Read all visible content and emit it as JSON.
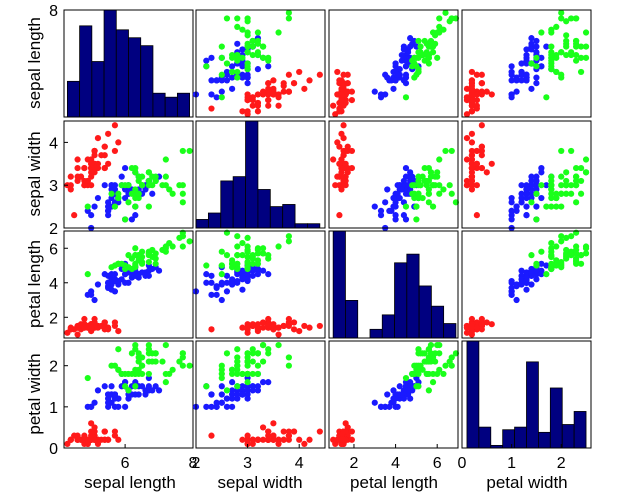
{
  "chart_data": {
    "type": "scatter_matrix",
    "title": "",
    "variables": [
      "sepal length",
      "sepal width",
      "petal length",
      "petal width"
    ],
    "ranges": [
      [
        4.2,
        8.0
      ],
      [
        2.0,
        4.5
      ],
      [
        0.8,
        7.0
      ],
      [
        0.0,
        2.6
      ]
    ],
    "ticks": [
      [
        6,
        8
      ],
      [
        2,
        3,
        4
      ],
      [
        2,
        4,
        6
      ],
      [
        0,
        1,
        2
      ]
    ],
    "y_ticks": [
      [
        8
      ],
      [
        2,
        3,
        4
      ],
      [
        2,
        4,
        6
      ],
      [
        0,
        1,
        2
      ]
    ],
    "tick_labels": {
      "x": [
        [
          "6",
          "8"
        ],
        [
          "2",
          "3",
          "4"
        ],
        [
          "2",
          "4",
          "6"
        ],
        [
          "0",
          "1",
          "2"
        ]
      ],
      "y": [
        [
          "8"
        ],
        [
          "2",
          "3",
          "4"
        ],
        [
          "2",
          "4",
          "6"
        ],
        [
          "0",
          "1",
          "2"
        ]
      ]
    },
    "species_colors": [
      "#ff1a1a",
      "#1a1aff",
      "#1aff1a"
    ],
    "hist_color": "#000080",
    "histograms": [
      {
        "edges": [
          4.3,
          4.66,
          5.02,
          5.38,
          5.74,
          6.1,
          6.46,
          6.82,
          7.18,
          7.54,
          7.9
        ],
        "counts": [
          9,
          23,
          14,
          27,
          22,
          20,
          18,
          6,
          5,
          6
        ]
      },
      {
        "edges": [
          2.0,
          2.24,
          2.48,
          2.72,
          2.96,
          3.2,
          3.44,
          3.68,
          3.92,
          4.16,
          4.4
        ],
        "counts": [
          4,
          7,
          22,
          24,
          50,
          18,
          10,
          11,
          2,
          2
        ]
      },
      {
        "edges": [
          1.0,
          1.59,
          2.18,
          2.77,
          3.36,
          3.95,
          4.54,
          5.13,
          5.72,
          6.31,
          6.9
        ],
        "counts": [
          37,
          13,
          0,
          3,
          8,
          26,
          29,
          18,
          11,
          5
        ]
      },
      {
        "edges": [
          0.1,
          0.34,
          0.58,
          0.82,
          1.06,
          1.3,
          1.54,
          1.78,
          2.02,
          2.26,
          2.5
        ],
        "counts": [
          41,
          8,
          1,
          7,
          8,
          33,
          6,
          23,
          9,
          14
        ]
      }
    ],
    "species": [
      {
        "points": [
          [
            5.1,
            3.5,
            1.4,
            0.2
          ],
          [
            4.9,
            3.0,
            1.4,
            0.2
          ],
          [
            4.7,
            3.2,
            1.3,
            0.2
          ],
          [
            4.6,
            3.1,
            1.5,
            0.2
          ],
          [
            5.0,
            3.6,
            1.4,
            0.2
          ],
          [
            5.4,
            3.9,
            1.7,
            0.4
          ],
          [
            4.6,
            3.4,
            1.4,
            0.3
          ],
          [
            5.0,
            3.4,
            1.5,
            0.2
          ],
          [
            4.4,
            2.9,
            1.4,
            0.2
          ],
          [
            4.9,
            3.1,
            1.5,
            0.1
          ],
          [
            5.4,
            3.7,
            1.5,
            0.2
          ],
          [
            4.8,
            3.4,
            1.6,
            0.2
          ],
          [
            4.8,
            3.0,
            1.4,
            0.1
          ],
          [
            4.3,
            3.0,
            1.1,
            0.1
          ],
          [
            5.8,
            4.0,
            1.2,
            0.2
          ],
          [
            5.7,
            4.4,
            1.5,
            0.4
          ],
          [
            5.4,
            3.9,
            1.3,
            0.4
          ],
          [
            5.1,
            3.5,
            1.4,
            0.3
          ],
          [
            5.7,
            3.8,
            1.7,
            0.3
          ],
          [
            5.1,
            3.8,
            1.5,
            0.3
          ],
          [
            5.4,
            3.4,
            1.7,
            0.2
          ],
          [
            5.1,
            3.7,
            1.5,
            0.4
          ],
          [
            4.6,
            3.6,
            1.0,
            0.2
          ],
          [
            5.1,
            3.3,
            1.7,
            0.5
          ],
          [
            4.8,
            3.4,
            1.9,
            0.2
          ],
          [
            5.0,
            3.0,
            1.6,
            0.2
          ],
          [
            5.0,
            3.4,
            1.6,
            0.4
          ],
          [
            5.2,
            3.5,
            1.5,
            0.2
          ],
          [
            5.2,
            3.4,
            1.4,
            0.2
          ],
          [
            4.7,
            3.2,
            1.6,
            0.2
          ],
          [
            4.8,
            3.1,
            1.6,
            0.2
          ],
          [
            5.4,
            3.4,
            1.5,
            0.4
          ],
          [
            5.2,
            4.1,
            1.5,
            0.1
          ],
          [
            5.5,
            4.2,
            1.4,
            0.2
          ],
          [
            4.9,
            3.1,
            1.5,
            0.2
          ],
          [
            5.0,
            3.2,
            1.2,
            0.2
          ],
          [
            5.5,
            3.5,
            1.3,
            0.2
          ],
          [
            4.9,
            3.6,
            1.4,
            0.1
          ],
          [
            4.4,
            3.0,
            1.3,
            0.2
          ],
          [
            5.1,
            3.4,
            1.5,
            0.2
          ],
          [
            5.0,
            3.5,
            1.3,
            0.3
          ],
          [
            4.5,
            2.3,
            1.3,
            0.3
          ],
          [
            4.4,
            3.2,
            1.3,
            0.2
          ],
          [
            5.0,
            3.5,
            1.6,
            0.6
          ],
          [
            5.1,
            3.8,
            1.9,
            0.4
          ],
          [
            4.8,
            3.0,
            1.4,
            0.3
          ],
          [
            5.1,
            3.8,
            1.6,
            0.2
          ],
          [
            4.6,
            3.2,
            1.4,
            0.2
          ],
          [
            5.3,
            3.7,
            1.5,
            0.2
          ],
          [
            5.0,
            3.3,
            1.4,
            0.2
          ]
        ]
      },
      {
        "points": [
          [
            7.0,
            3.2,
            4.7,
            1.4
          ],
          [
            6.4,
            3.2,
            4.5,
            1.5
          ],
          [
            6.9,
            3.1,
            4.9,
            1.5
          ],
          [
            5.5,
            2.3,
            4.0,
            1.3
          ],
          [
            6.5,
            2.8,
            4.6,
            1.5
          ],
          [
            5.7,
            2.8,
            4.5,
            1.3
          ],
          [
            6.3,
            3.3,
            4.7,
            1.6
          ],
          [
            4.9,
            2.4,
            3.3,
            1.0
          ],
          [
            6.6,
            2.9,
            4.6,
            1.3
          ],
          [
            5.2,
            2.7,
            3.9,
            1.4
          ],
          [
            5.0,
            2.0,
            3.5,
            1.0
          ],
          [
            5.9,
            3.0,
            4.2,
            1.5
          ],
          [
            6.0,
            2.2,
            4.0,
            1.0
          ],
          [
            6.1,
            2.9,
            4.7,
            1.4
          ],
          [
            5.6,
            2.9,
            3.6,
            1.3
          ],
          [
            6.7,
            3.1,
            4.4,
            1.4
          ],
          [
            5.6,
            3.0,
            4.5,
            1.5
          ],
          [
            5.8,
            2.7,
            4.1,
            1.0
          ],
          [
            6.2,
            2.2,
            4.5,
            1.5
          ],
          [
            5.6,
            2.5,
            3.9,
            1.1
          ],
          [
            5.9,
            3.2,
            4.8,
            1.8
          ],
          [
            6.1,
            2.8,
            4.0,
            1.3
          ],
          [
            6.3,
            2.5,
            4.9,
            1.5
          ],
          [
            6.1,
            2.8,
            4.7,
            1.2
          ],
          [
            6.4,
            2.9,
            4.3,
            1.3
          ],
          [
            6.6,
            3.0,
            4.4,
            1.4
          ],
          [
            6.8,
            2.8,
            4.8,
            1.4
          ],
          [
            6.7,
            3.0,
            5.0,
            1.7
          ],
          [
            6.0,
            2.9,
            4.5,
            1.5
          ],
          [
            5.7,
            2.6,
            3.5,
            1.0
          ],
          [
            5.5,
            2.4,
            3.8,
            1.1
          ],
          [
            5.5,
            2.4,
            3.7,
            1.0
          ],
          [
            5.8,
            2.7,
            3.9,
            1.2
          ],
          [
            6.0,
            2.7,
            5.1,
            1.6
          ],
          [
            5.4,
            3.0,
            4.5,
            1.5
          ],
          [
            6.0,
            3.4,
            4.5,
            1.6
          ],
          [
            6.7,
            3.1,
            4.7,
            1.5
          ],
          [
            6.3,
            2.3,
            4.4,
            1.3
          ],
          [
            5.6,
            3.0,
            4.1,
            1.3
          ],
          [
            5.5,
            2.5,
            4.0,
            1.3
          ],
          [
            5.5,
            2.6,
            4.4,
            1.2
          ],
          [
            6.1,
            3.0,
            4.6,
            1.4
          ],
          [
            5.8,
            2.6,
            4.0,
            1.2
          ],
          [
            5.0,
            2.3,
            3.3,
            1.0
          ],
          [
            5.6,
            2.7,
            4.2,
            1.3
          ],
          [
            5.7,
            3.0,
            4.2,
            1.2
          ],
          [
            5.7,
            2.9,
            4.2,
            1.3
          ],
          [
            6.2,
            2.9,
            4.3,
            1.3
          ],
          [
            5.1,
            2.5,
            3.0,
            1.1
          ],
          [
            5.7,
            2.8,
            4.1,
            1.3
          ]
        ]
      },
      {
        "points": [
          [
            6.3,
            3.3,
            6.0,
            2.5
          ],
          [
            5.8,
            2.7,
            5.1,
            1.9
          ],
          [
            7.1,
            3.0,
            5.9,
            2.1
          ],
          [
            6.3,
            2.9,
            5.6,
            1.8
          ],
          [
            6.5,
            3.0,
            5.8,
            2.2
          ],
          [
            7.6,
            3.0,
            6.6,
            2.1
          ],
          [
            4.9,
            2.5,
            4.5,
            1.7
          ],
          [
            7.3,
            2.9,
            6.3,
            1.8
          ],
          [
            6.7,
            2.5,
            5.8,
            1.8
          ],
          [
            7.2,
            3.6,
            6.1,
            2.5
          ],
          [
            6.5,
            3.2,
            5.1,
            2.0
          ],
          [
            6.4,
            2.7,
            5.3,
            1.9
          ],
          [
            6.8,
            3.0,
            5.5,
            2.1
          ],
          [
            5.7,
            2.5,
            5.0,
            2.0
          ],
          [
            5.8,
            2.8,
            5.1,
            2.4
          ],
          [
            6.4,
            3.2,
            5.3,
            2.3
          ],
          [
            6.5,
            3.0,
            5.5,
            1.8
          ],
          [
            7.7,
            3.8,
            6.7,
            2.2
          ],
          [
            7.7,
            2.6,
            6.9,
            2.3
          ],
          [
            6.0,
            2.2,
            5.0,
            1.5
          ],
          [
            6.9,
            3.2,
            5.7,
            2.3
          ],
          [
            5.6,
            2.8,
            4.9,
            2.0
          ],
          [
            7.7,
            2.8,
            6.7,
            2.0
          ],
          [
            6.3,
            2.7,
            4.9,
            1.8
          ],
          [
            6.7,
            3.3,
            5.7,
            2.1
          ],
          [
            7.2,
            3.2,
            6.0,
            1.8
          ],
          [
            6.2,
            2.8,
            4.8,
            1.8
          ],
          [
            6.1,
            3.0,
            4.9,
            1.8
          ],
          [
            6.4,
            2.8,
            5.6,
            2.1
          ],
          [
            7.2,
            3.0,
            5.8,
            1.6
          ],
          [
            7.4,
            2.8,
            6.1,
            1.9
          ],
          [
            7.9,
            3.8,
            6.4,
            2.0
          ],
          [
            6.4,
            2.8,
            5.6,
            2.2
          ],
          [
            6.3,
            2.8,
            5.1,
            1.5
          ],
          [
            6.1,
            2.6,
            5.6,
            1.4
          ],
          [
            7.7,
            3.0,
            6.1,
            2.3
          ],
          [
            6.3,
            3.4,
            5.6,
            2.4
          ],
          [
            6.4,
            3.1,
            5.5,
            1.8
          ],
          [
            6.0,
            3.0,
            4.8,
            1.8
          ],
          [
            6.9,
            3.1,
            5.4,
            2.1
          ],
          [
            6.7,
            3.1,
            5.6,
            2.4
          ],
          [
            6.9,
            3.1,
            5.1,
            2.3
          ],
          [
            5.8,
            2.7,
            5.1,
            1.9
          ],
          [
            6.8,
            3.2,
            5.9,
            2.3
          ],
          [
            6.7,
            3.3,
            5.7,
            2.5
          ],
          [
            6.7,
            3.0,
            5.2,
            2.3
          ],
          [
            6.3,
            2.5,
            5.0,
            1.9
          ],
          [
            6.5,
            3.0,
            5.2,
            2.0
          ],
          [
            6.2,
            3.4,
            5.4,
            2.3
          ],
          [
            5.9,
            3.0,
            5.1,
            1.8
          ]
        ]
      }
    ]
  }
}
